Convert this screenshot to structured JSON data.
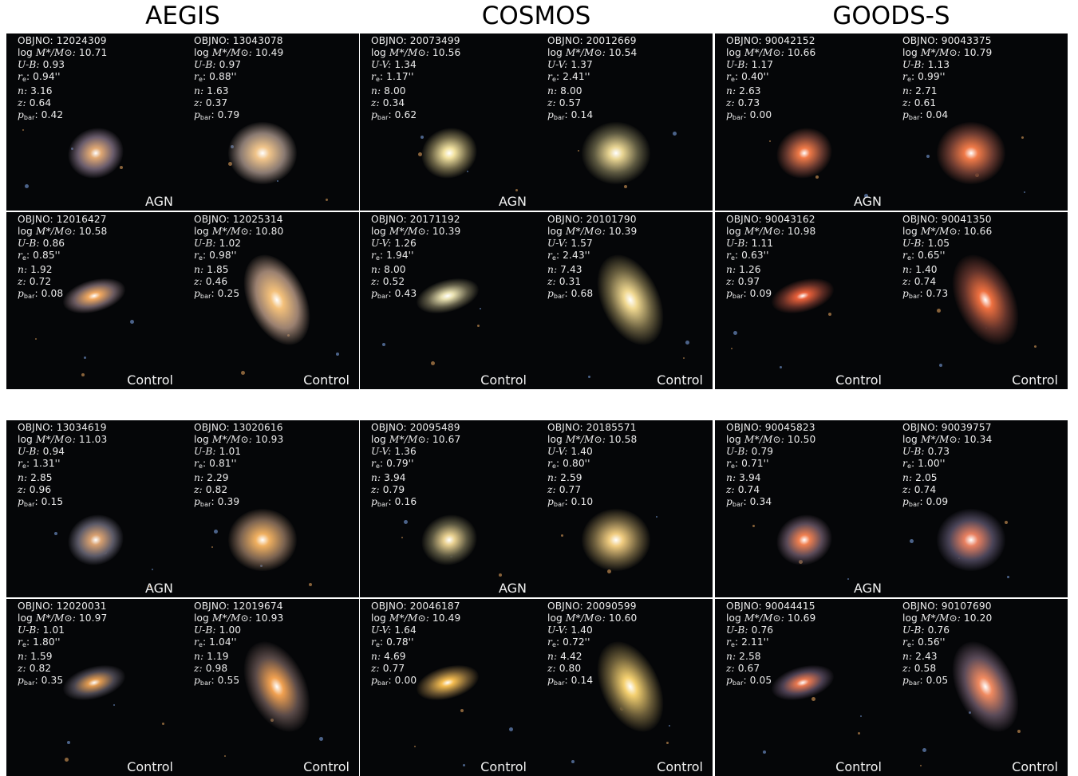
{
  "surveys": [
    "AEGIS",
    "COSMOS",
    "GOODS-S"
  ],
  "field_labels": {
    "objno": "OBJNO:",
    "log_prefix": "log",
    "mass_ratio": "M*/M⊙:",
    "re_label": "r",
    "re_sub": "e",
    "n_label": "n:",
    "z_label": "z:",
    "p_label": "p",
    "p_sub": "bar"
  },
  "panels": [
    {
      "survey": "AEGIS",
      "color_label": "U-B:",
      "cells": [
        {
          "objno": "12024309",
          "mass": "10.71",
          "color": "0.93",
          "re": "0.94''",
          "n": "3.16",
          "z": "0.64",
          "pbar": "0.42",
          "tag": "",
          "gal": {
            "c": "#e0a873",
            "halo": "#6a5c6c"
          }
        },
        {
          "objno": "13043078",
          "mass": "10.49",
          "color": "0.97",
          "re": "0.88''",
          "n": "1.63",
          "z": "0.37",
          "pbar": "0.79",
          "tag": "AGN",
          "gal": {
            "c": "#f0c48a",
            "halo": "#8a7a72"
          }
        },
        {
          "objno": "12016427",
          "mass": "10.58",
          "color": "0.86",
          "re": "0.85''",
          "n": "1.92",
          "z": "0.72",
          "pbar": "0.08",
          "tag": "Control",
          "gal": {
            "c": "#f0a860",
            "halo": "#6a5a60"
          }
        },
        {
          "objno": "12025314",
          "mass": "10.80",
          "color": "1.02",
          "re": "0.98''",
          "n": "1.85",
          "z": "0.46",
          "pbar": "0.25",
          "tag": "Control",
          "gal": {
            "c": "#f3c07a",
            "halo": "#9a8070"
          }
        }
      ]
    },
    {
      "survey": "COSMOS",
      "color_label": "U-V:",
      "cells": [
        {
          "objno": "20073499",
          "mass": "10.56",
          "color": "1.34",
          "re": "1.17''",
          "n": "8.00",
          "z": "0.34",
          "pbar": "0.62",
          "tag": "",
          "gal": {
            "c": "#f2e2a0",
            "halo": "#6c6446"
          }
        },
        {
          "objno": "20012669",
          "mass": "10.54",
          "color": "1.37",
          "re": "2.41''",
          "n": "8.00",
          "z": "0.57",
          "pbar": "0.14",
          "tag": "AGN",
          "gal": {
            "c": "#e8d492",
            "halo": "#5c5840"
          }
        },
        {
          "objno": "20171192",
          "mass": "10.39",
          "color": "1.26",
          "re": "1.94''",
          "n": "8.00",
          "z": "0.52",
          "pbar": "0.43",
          "tag": "Control",
          "gal": {
            "c": "#e8e0b0",
            "halo": "#5e5a46"
          }
        },
        {
          "objno": "20101790",
          "mass": "10.39",
          "color": "1.57",
          "re": "2.43''",
          "n": "7.43",
          "z": "0.31",
          "pbar": "0.68",
          "tag": "Control",
          "gal": {
            "c": "#f0d890",
            "halo": "#6a6040"
          }
        }
      ]
    },
    {
      "survey": "GOODS-S",
      "color_label": "U-B:",
      "cells": [
        {
          "objno": "90042152",
          "mass": "10.66",
          "color": "1.17",
          "re": "0.40''",
          "n": "2.63",
          "z": "0.73",
          "pbar": "0.00",
          "tag": "",
          "gal": {
            "c": "#f07a48",
            "halo": "#6a3a30"
          }
        },
        {
          "objno": "90043375",
          "mass": "10.79",
          "color": "1.13",
          "re": "0.99''",
          "n": "2.71",
          "z": "0.61",
          "pbar": "0.04",
          "tag": "AGN",
          "gal": {
            "c": "#f07a48",
            "halo": "#6a3a30"
          }
        },
        {
          "objno": "90043162",
          "mass": "10.98",
          "color": "1.11",
          "re": "0.63''",
          "n": "1.26",
          "z": "0.97",
          "pbar": "0.09",
          "tag": "Control",
          "gal": {
            "c": "#e8603a",
            "halo": "#5e2c24"
          }
        },
        {
          "objno": "90041350",
          "mass": "10.66",
          "color": "1.05",
          "re": "0.65''",
          "n": "1.40",
          "z": "0.74",
          "pbar": "0.73",
          "tag": "Control",
          "gal": {
            "c": "#ee7040",
            "halo": "#60322a"
          }
        }
      ]
    },
    {
      "survey": "AEGIS",
      "color_label": "U-B:",
      "cells": [
        {
          "objno": "13034619",
          "mass": "11.03",
          "color": "0.94",
          "re": "1.31''",
          "n": "2.85",
          "z": "0.96",
          "pbar": "0.15",
          "tag": "",
          "gal": {
            "c": "#d8a070",
            "halo": "#5c5a68"
          }
        },
        {
          "objno": "13020616",
          "mass": "10.93",
          "color": "1.01",
          "re": "0.81''",
          "n": "2.29",
          "z": "0.82",
          "pbar": "0.39",
          "tag": "AGN",
          "gal": {
            "c": "#f0b060",
            "halo": "#7a6250"
          }
        },
        {
          "objno": "12020031",
          "mass": "10.97",
          "color": "1.01",
          "re": "1.80''",
          "n": "1.59",
          "z": "0.82",
          "pbar": "0.35",
          "tag": "Control",
          "gal": {
            "c": "#e09a50",
            "halo": "#4a4650"
          }
        },
        {
          "objno": "12019674",
          "mass": "10.93",
          "color": "1.00",
          "re": "1.04''",
          "n": "1.19",
          "z": "0.98",
          "pbar": "0.55",
          "tag": "Control",
          "gal": {
            "c": "#f0a050",
            "halo": "#5a4a48"
          }
        }
      ]
    },
    {
      "survey": "COSMOS",
      "color_label": "U-V:",
      "cells": [
        {
          "objno": "20095489",
          "mass": "10.67",
          "color": "1.36",
          "re": "0.79''",
          "n": "3.94",
          "z": "0.79",
          "pbar": "0.16",
          "tag": "",
          "gal": {
            "c": "#e8d090",
            "halo": "#5a5640"
          }
        },
        {
          "objno": "20185571",
          "mass": "10.58",
          "color": "1.40",
          "re": "0.80''",
          "n": "2.59",
          "z": "0.77",
          "pbar": "0.10",
          "tag": "AGN",
          "gal": {
            "c": "#f0cc80",
            "halo": "#6a5c3c"
          }
        },
        {
          "objno": "20046187",
          "mass": "10.49",
          "color": "1.64",
          "re": "0.78''",
          "n": "4.69",
          "z": "0.77",
          "pbar": "0.00",
          "tag": "Control",
          "gal": {
            "c": "#f4bc50",
            "halo": "#6a5430"
          }
        },
        {
          "objno": "20090599",
          "mass": "10.60",
          "color": "1.40",
          "re": "0.72''",
          "n": "4.42",
          "z": "0.80",
          "pbar": "0.14",
          "tag": "Control",
          "gal": {
            "c": "#f4d070",
            "halo": "#6a5c38"
          }
        }
      ]
    },
    {
      "survey": "GOODS-S",
      "color_label": "U-B:",
      "cells": [
        {
          "objno": "90045823",
          "mass": "10.50",
          "color": "0.79",
          "re": "0.71''",
          "n": "3.94",
          "z": "0.74",
          "pbar": "0.34",
          "tag": "",
          "gal": {
            "c": "#f08050",
            "halo": "#5a4a58"
          }
        },
        {
          "objno": "90039757",
          "mass": "10.34",
          "color": "0.73",
          "re": "1.00''",
          "n": "2.05",
          "z": "0.74",
          "pbar": "0.09",
          "tag": "AGN",
          "gal": {
            "c": "#e88060",
            "halo": "#4a4458"
          }
        },
        {
          "objno": "90044415",
          "mass": "10.69",
          "color": "0.76",
          "re": "2.11''",
          "n": "2.58",
          "z": "0.67",
          "pbar": "0.05",
          "tag": "Control",
          "gal": {
            "c": "#e87850",
            "halo": "#4c4052"
          }
        },
        {
          "objno": "90107690",
          "mass": "10.20",
          "color": "0.76",
          "re": "0.56''",
          "n": "2.43",
          "z": "0.58",
          "pbar": "0.05",
          "tag": "Control",
          "gal": {
            "c": "#f08a60",
            "halo": "#5a4a58"
          }
        }
      ]
    }
  ]
}
